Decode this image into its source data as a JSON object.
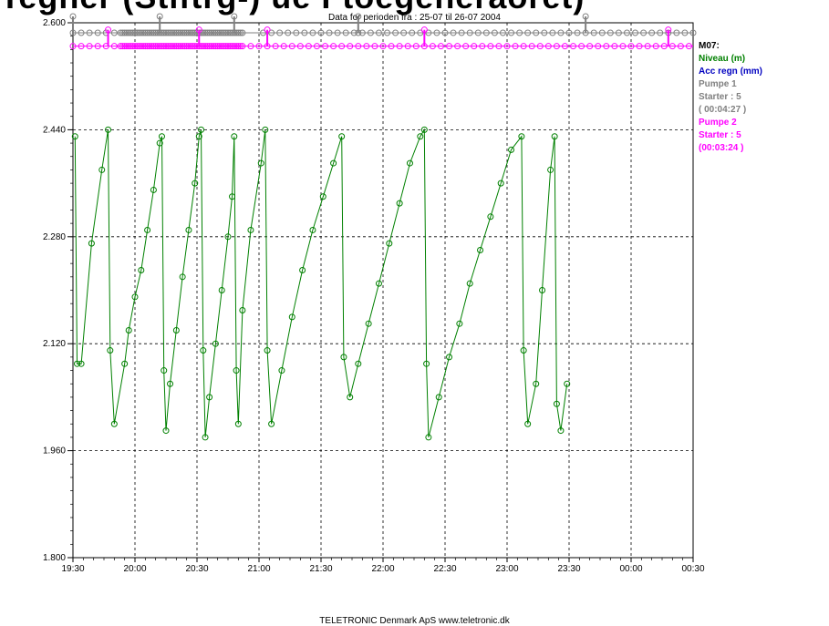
{
  "banner_text": "Tegner (Stiftrg-) ue Ftoegeneraoret)",
  "chart_data": {
    "type": "line",
    "title": "Data for perioden fra :  25-07  til  26-07 2004",
    "xlabel": "",
    "ylabel": "",
    "ylim": [
      1.8,
      2.6
    ],
    "xlim": [
      "19:30",
      "00:30"
    ],
    "y_ticks": [
      "1.800",
      "1.960",
      "2.120",
      "2.280",
      "2.440",
      "2.600"
    ],
    "x_ticks": [
      "19:30",
      "20:00",
      "20:30",
      "21:00",
      "21:30",
      "22:00",
      "22:30",
      "23:00",
      "23:30",
      "00:00",
      "00:30"
    ],
    "grid": true,
    "legend_position": "right",
    "series": [
      {
        "name": "Niveau (m)",
        "color": "#008000",
        "points": [
          [
            "19:31",
            2.43
          ],
          [
            "19:32",
            2.09
          ],
          [
            "19:34",
            2.09
          ],
          [
            "19:39",
            2.27
          ],
          [
            "19:44",
            2.38
          ],
          [
            "19:47",
            2.44
          ],
          [
            "19:48",
            2.11
          ],
          [
            "19:50",
            2.0
          ],
          [
            "19:55",
            2.09
          ],
          [
            "19:57",
            2.14
          ],
          [
            "20:00",
            2.19
          ],
          [
            "20:03",
            2.23
          ],
          [
            "20:06",
            2.29
          ],
          [
            "20:09",
            2.35
          ],
          [
            "20:12",
            2.42
          ],
          [
            "20:13",
            2.43
          ],
          [
            "20:14",
            2.08
          ],
          [
            "20:15",
            1.99
          ],
          [
            "20:17",
            2.06
          ],
          [
            "20:20",
            2.14
          ],
          [
            "20:23",
            2.22
          ],
          [
            "20:26",
            2.29
          ],
          [
            "20:29",
            2.36
          ],
          [
            "20:31",
            2.43
          ],
          [
            "20:32",
            2.44
          ],
          [
            "20:33",
            2.11
          ],
          [
            "20:34",
            1.98
          ],
          [
            "20:36",
            2.04
          ],
          [
            "20:39",
            2.12
          ],
          [
            "20:42",
            2.2
          ],
          [
            "20:45",
            2.28
          ],
          [
            "20:47",
            2.34
          ],
          [
            "20:48",
            2.43
          ],
          [
            "20:49",
            2.08
          ],
          [
            "20:50",
            2.0
          ],
          [
            "20:52",
            2.17
          ],
          [
            "20:56",
            2.29
          ],
          [
            "21:01",
            2.39
          ],
          [
            "21:03",
            2.44
          ],
          [
            "21:04",
            2.11
          ],
          [
            "21:06",
            2.0
          ],
          [
            "21:11",
            2.08
          ],
          [
            "21:16",
            2.16
          ],
          [
            "21:21",
            2.23
          ],
          [
            "21:26",
            2.29
          ],
          [
            "21:31",
            2.34
          ],
          [
            "21:36",
            2.39
          ],
          [
            "21:40",
            2.43
          ],
          [
            "21:41",
            2.1
          ],
          [
            "21:44",
            2.04
          ],
          [
            "21:48",
            2.09
          ],
          [
            "21:53",
            2.15
          ],
          [
            "21:58",
            2.21
          ],
          [
            "22:03",
            2.27
          ],
          [
            "22:08",
            2.33
          ],
          [
            "22:13",
            2.39
          ],
          [
            "22:18",
            2.43
          ],
          [
            "22:20",
            2.44
          ],
          [
            "22:21",
            2.09
          ],
          [
            "22:22",
            1.98
          ],
          [
            "22:27",
            2.04
          ],
          [
            "22:32",
            2.1
          ],
          [
            "22:37",
            2.15
          ],
          [
            "22:42",
            2.21
          ],
          [
            "22:47",
            2.26
          ],
          [
            "22:52",
            2.31
          ],
          [
            "22:57",
            2.36
          ],
          [
            "23:02",
            2.41
          ],
          [
            "23:07",
            2.43
          ],
          [
            "23:08",
            2.11
          ],
          [
            "23:10",
            2.0
          ],
          [
            "23:14",
            2.06
          ],
          [
            "23:17",
            2.2
          ],
          [
            "23:21",
            2.38
          ],
          [
            "23:23",
            2.43
          ],
          [
            "23:24",
            2.03
          ],
          [
            "23:26",
            1.99
          ],
          [
            "23:29",
            2.06
          ]
        ]
      },
      {
        "name": "Acc regn (mm)",
        "color": "#0000c0",
        "points": []
      },
      {
        "name": "Pumpe 1",
        "color": "#808080",
        "level": 2.585,
        "start_times": [
          "19:30",
          "20:12",
          "20:48",
          "21:48",
          "23:38"
        ],
        "marker_times": [
          "19:30",
          "19:34",
          "19:38",
          "19:42",
          "19:46",
          "19:50",
          "19:53",
          "19:54",
          "19:55",
          "19:56",
          "19:57",
          "19:58",
          "19:59",
          "20:00",
          "20:01",
          "20:02",
          "20:03",
          "20:04",
          "20:05",
          "20:06",
          "20:07",
          "20:08",
          "20:09",
          "20:10",
          "20:11",
          "20:12",
          "20:13",
          "20:14",
          "20:15",
          "20:16",
          "20:17",
          "20:18",
          "20:19",
          "20:20",
          "20:21",
          "20:22",
          "20:23",
          "20:24",
          "20:25",
          "20:26",
          "20:27",
          "20:28",
          "20:29",
          "20:30",
          "20:31",
          "20:32",
          "20:33",
          "20:34",
          "20:35",
          "20:36",
          "20:37",
          "20:38",
          "20:39",
          "20:40",
          "20:41",
          "20:42",
          "20:43",
          "20:44",
          "20:45",
          "20:46",
          "20:47",
          "20:48",
          "20:49",
          "20:50",
          "20:51",
          "20:52",
          "21:02",
          "21:06",
          "21:10",
          "21:14",
          "21:18",
          "21:22",
          "21:26",
          "21:30",
          "21:34",
          "21:38",
          "21:42",
          "21:46",
          "21:48",
          "21:50",
          "21:54",
          "21:58",
          "22:02",
          "22:06",
          "22:10",
          "22:14",
          "22:18",
          "22:22",
          "22:26",
          "22:30",
          "22:34",
          "22:38",
          "22:42",
          "22:46",
          "22:50",
          "22:54",
          "22:58",
          "23:02",
          "23:06",
          "23:10",
          "23:14",
          "23:18",
          "23:22",
          "23:26",
          "23:30",
          "23:34",
          "23:38",
          "23:42",
          "23:46",
          "23:50",
          "23:54",
          "23:58",
          "00:02",
          "00:06",
          "00:10",
          "00:14",
          "00:18",
          "00:22",
          "00:26",
          "00:30"
        ]
      },
      {
        "name": "Pumpe 2",
        "color": "#ff00ff",
        "level": 2.565,
        "start_times": [
          "19:47",
          "20:31",
          "21:04",
          "22:20",
          "00:18"
        ],
        "marker_times": [
          "19:30",
          "19:34",
          "19:38",
          "19:42",
          "19:46",
          "19:50",
          "19:53",
          "19:54",
          "19:55",
          "19:56",
          "19:57",
          "19:58",
          "19:59",
          "20:00",
          "20:01",
          "20:02",
          "20:03",
          "20:04",
          "20:05",
          "20:06",
          "20:07",
          "20:08",
          "20:09",
          "20:10",
          "20:11",
          "20:12",
          "20:13",
          "20:14",
          "20:15",
          "20:16",
          "20:17",
          "20:18",
          "20:19",
          "20:20",
          "20:21",
          "20:22",
          "20:23",
          "20:24",
          "20:25",
          "20:26",
          "20:27",
          "20:28",
          "20:29",
          "20:30",
          "20:31",
          "20:32",
          "20:33",
          "20:34",
          "20:35",
          "20:36",
          "20:37",
          "20:38",
          "20:39",
          "20:40",
          "20:41",
          "20:42",
          "20:43",
          "20:44",
          "20:45",
          "20:46",
          "20:47",
          "20:48",
          "20:49",
          "20:50",
          "20:51",
          "20:52",
          "20:56",
          "21:00",
          "21:04",
          "21:08",
          "21:12",
          "21:16",
          "21:20",
          "21:24",
          "21:28",
          "21:32",
          "21:36",
          "21:40",
          "21:44",
          "21:48",
          "21:52",
          "21:56",
          "22:00",
          "22:04",
          "22:08",
          "22:12",
          "22:16",
          "22:20",
          "22:24",
          "22:28",
          "22:32",
          "22:36",
          "22:40",
          "22:44",
          "22:48",
          "22:52",
          "22:56",
          "23:00",
          "23:04",
          "23:08",
          "23:12",
          "23:16",
          "23:20",
          "23:24",
          "23:28",
          "23:32",
          "23:36",
          "23:40",
          "23:44",
          "23:48",
          "23:52",
          "23:56",
          "00:00",
          "00:04",
          "00:08",
          "00:12",
          "00:16",
          "00:20",
          "00:24",
          "00:28"
        ]
      }
    ],
    "legend": {
      "station": "M07:",
      "items": [
        {
          "text": "Niveau (m)",
          "color": "#008000"
        },
        {
          "text": "Acc regn (mm)",
          "color": "#0000c0"
        },
        {
          "text": "Pumpe 1",
          "color": "#808080"
        },
        {
          "text": "Starter : 5",
          "color": "#808080"
        },
        {
          "text": "( 00:04:27 )",
          "color": "#808080"
        },
        {
          "text": "Pumpe 2",
          "color": "#ff00ff"
        },
        {
          "text": "Starter : 5",
          "color": "#ff00ff"
        },
        {
          "text": "(00:03:24 )",
          "color": "#ff00ff"
        }
      ]
    }
  },
  "footer": "TELETRONIC Denmark ApS   www.teletronic.dk"
}
